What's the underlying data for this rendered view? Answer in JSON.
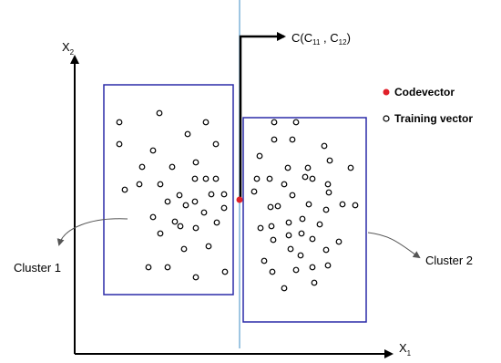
{
  "axes": {
    "y_label_main": "X",
    "y_label_sub": "2",
    "x_label_main": "X",
    "x_label_sub": "1"
  },
  "codevector_label": {
    "prefix": "C(C",
    "sub1": "11",
    "mid": " , C",
    "sub2": "12",
    "suffix": ")"
  },
  "legend": {
    "codevector": "Codevector",
    "training": "Training vector"
  },
  "clusters": {
    "cluster1": "Cluster 1",
    "cluster2": "Cluster 2"
  },
  "colors": {
    "box": "#2b2ba8",
    "divider": "#7fb3d9",
    "codevector": "#e0202a",
    "point": "#000000"
  },
  "training_point_count": {
    "cluster1": 36,
    "cluster2": 45
  }
}
